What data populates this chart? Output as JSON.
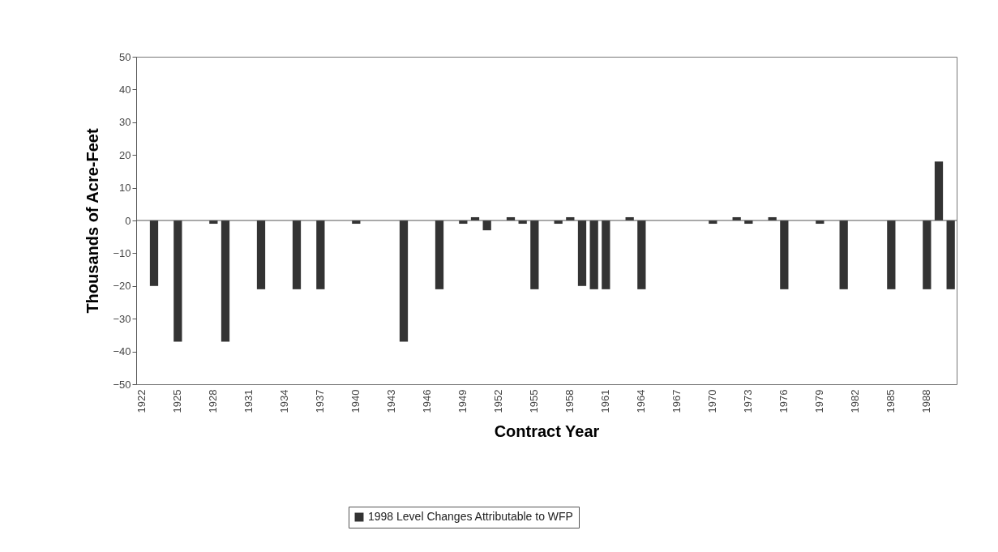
{
  "chart_data": {
    "type": "bar",
    "xlabel": "Contract Year",
    "ylabel": "Thousands of Acre-Feet",
    "categories": [
      "1922",
      null,
      null,
      "1925",
      null,
      null,
      "1928",
      null,
      null,
      "1931",
      null,
      null,
      "1934",
      null,
      null,
      "1937",
      null,
      null,
      "1940",
      null,
      null,
      "1943",
      null,
      null,
      "1946",
      null,
      null,
      "1949",
      null,
      null,
      "1952",
      null,
      null,
      "1955",
      null,
      null,
      "1958",
      null,
      null,
      "1961",
      null,
      null,
      "1964",
      null,
      null,
      "1967",
      null,
      null,
      "1970",
      null,
      null,
      "1973",
      null,
      null,
      "1976",
      null,
      null,
      "1979",
      null,
      null,
      "1982",
      null,
      null,
      "1985",
      null,
      null,
      "1988",
      null,
      null
    ],
    "series": [
      {
        "name": "1998 Level Changes Attributable to WFP",
        "color": "#333333",
        "values": [
          null,
          -20,
          null,
          -37,
          null,
          null,
          -1,
          -37,
          null,
          null,
          -21,
          null,
          null,
          -21,
          null,
          -21,
          null,
          null,
          -1,
          null,
          null,
          null,
          -37,
          null,
          null,
          -21,
          null,
          -1,
          1,
          -3,
          null,
          1,
          -1,
          -21,
          null,
          -1,
          1,
          -20,
          -21,
          -21,
          null,
          1,
          -21,
          null,
          null,
          null,
          null,
          null,
          -1,
          null,
          1,
          -1,
          null,
          1,
          -21,
          null,
          null,
          -1,
          null,
          -21,
          null,
          null,
          null,
          -21,
          null,
          null,
          -21,
          18,
          -21
        ]
      }
    ],
    "ylim": [
      -50,
      50
    ],
    "yticks": [
      -50,
      -40,
      -30,
      -20,
      -10,
      0,
      10,
      20,
      30,
      40,
      50
    ],
    "ref_lines": [
      {
        "axis": "y",
        "value": 0
      }
    ],
    "grid": false,
    "legend": "bottom"
  }
}
